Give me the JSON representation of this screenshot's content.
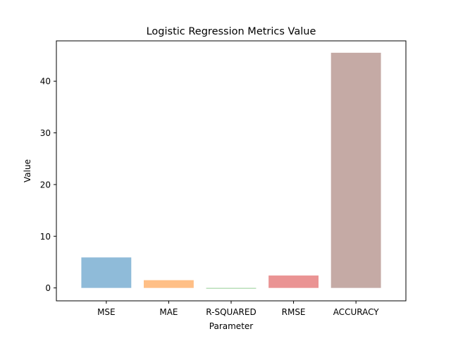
{
  "chart_data": {
    "type": "bar",
    "title": "Logistic Regression Metrics Value",
    "xlabel": "Parameter",
    "ylabel": "Value",
    "categories": [
      "MSE",
      "MAE",
      "R-SQUARED",
      "RMSE",
      "ACCURACY"
    ],
    "values": [
      5.9,
      1.5,
      -0.1,
      2.4,
      45.5
    ],
    "colors": [
      "#1f77b4",
      "#ff7f0e",
      "#2ca02c",
      "#d62728",
      "#8c564b"
    ],
    "bar_opacity": 0.5,
    "ylim": [
      -2.5,
      47.8
    ],
    "yticks": [
      0,
      10,
      20,
      30,
      40
    ],
    "grid": false,
    "legend": "none"
  }
}
